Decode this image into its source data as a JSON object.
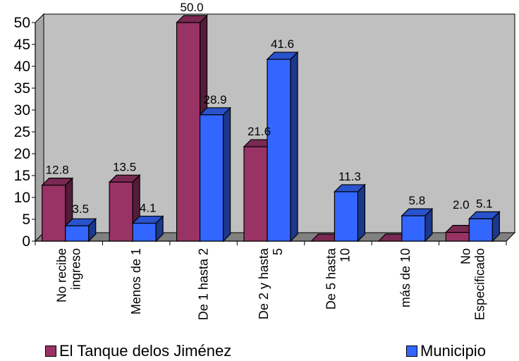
{
  "chart_data": {
    "type": "bar",
    "title": "",
    "xlabel": "",
    "ylabel": "",
    "ylim": [
      0,
      50
    ],
    "yticks": [
      "0",
      "5",
      "10",
      "15",
      "20",
      "25",
      "30",
      "35",
      "40",
      "45",
      "50"
    ],
    "grid": false,
    "legend_position": "bottom",
    "categories": [
      [
        "No recibe",
        "ingreso"
      ],
      [
        "Menos de 1"
      ],
      [
        "De 1 hasta 2"
      ],
      [
        "De 2 y hasta",
        "5"
      ],
      [
        "De 5 hasta",
        "10"
      ],
      [
        "más de 10"
      ],
      [
        "No",
        "Especificado"
      ]
    ],
    "series": [
      {
        "name": "El Tanque delos Jiménez",
        "color": "#993366",
        "values": [
          12.8,
          13.5,
          50.0,
          21.6,
          0,
          0,
          2.0
        ],
        "labels": [
          "12.8",
          "13.5",
          "50.0",
          "21.6",
          "",
          "",
          "2.0"
        ]
      },
      {
        "name": "Municipio",
        "color": "#3366FF",
        "values": [
          3.5,
          4.1,
          28.9,
          41.6,
          11.3,
          5.8,
          5.1
        ],
        "labels": [
          "3.5",
          "4.1",
          "28.9",
          "41.6",
          "11.3",
          "5.8",
          "5.1"
        ]
      }
    ]
  }
}
